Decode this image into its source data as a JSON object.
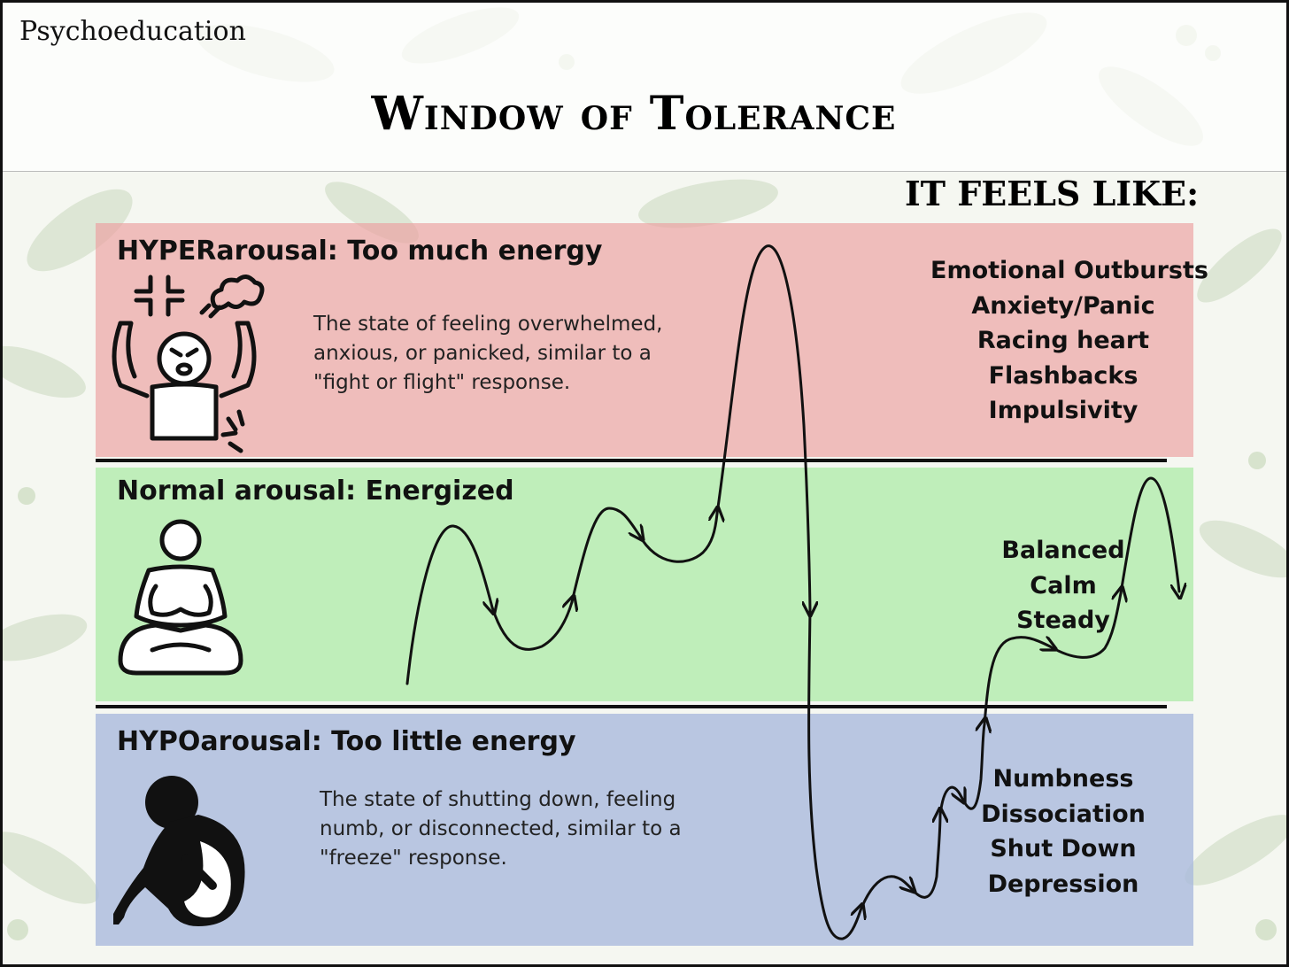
{
  "header": {
    "section_label": "Psychoeducation",
    "title": "Window of Tolerance"
  },
  "feels_heading": "IT FEELS LIKE:",
  "zones": {
    "hyper": {
      "title": "HYPERarousal: Too much energy",
      "description": "The state of feeling overwhelmed, anxious, or panicked, similar to a \"fight or flight\" response.",
      "feelings": [
        "Emotional Outbursts",
        "Anxiety/Panic",
        "Racing heart",
        "Flashbacks",
        "Impulsivity"
      ],
      "icon": "angry-person-icon",
      "color": "#eca0a0"
    },
    "normal": {
      "title": "Normal arousal: Energized",
      "feelings": [
        "Balanced",
        "Calm",
        "Steady"
      ],
      "icon": "meditating-person-icon",
      "color": "#b0ecaa"
    },
    "hypo": {
      "title": "HYPOarousal: Too little energy",
      "description": "The state of shutting down, feeling numb, or disconnected, similar to a \"freeze\" response.",
      "feelings": [
        "Numbness",
        "Dissociation",
        "Shut Down",
        "Depression"
      ],
      "icon": "curled-up-person-icon",
      "color": "#a8b8dc"
    }
  }
}
